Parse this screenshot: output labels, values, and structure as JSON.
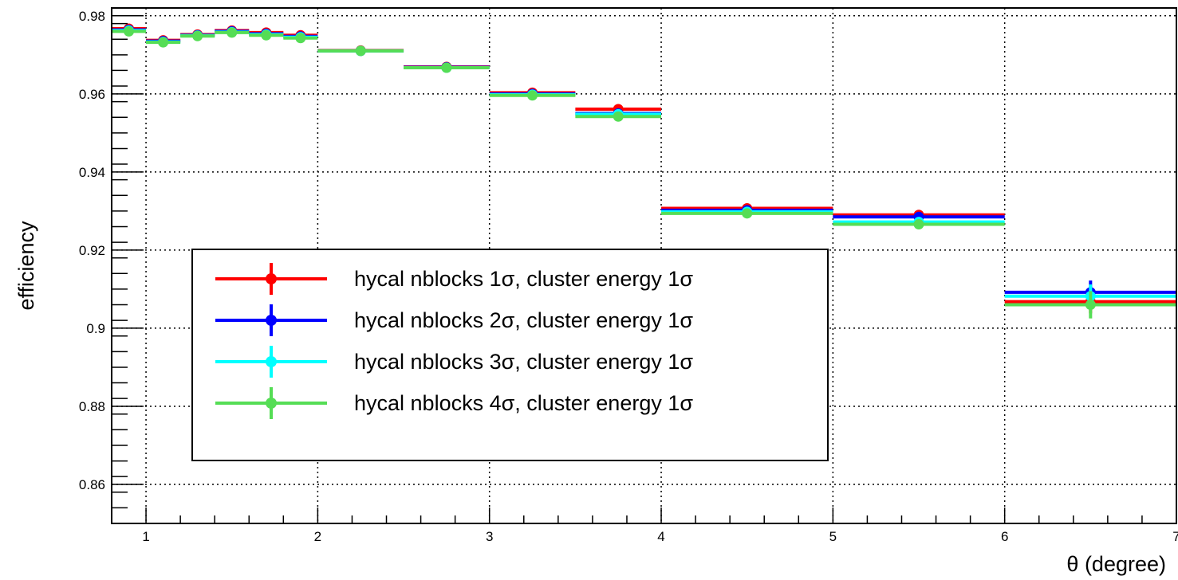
{
  "chart_data": {
    "type": "scatter",
    "title": "",
    "xlabel": "θ (degree)",
    "ylabel": "efficiency",
    "xlim": [
      0.8,
      7.0
    ],
    "ylim": [
      0.85,
      0.982
    ],
    "grid": true,
    "legend_position": "bottom-left",
    "x_ticks": [
      "1",
      "2",
      "3",
      "4",
      "5",
      "6",
      "7"
    ],
    "y_ticks": [
      "0.86",
      "0.88",
      "0.9",
      "0.92",
      "0.94",
      "0.96",
      "0.98"
    ],
    "bins": [
      {
        "low": 0.8,
        "high": 1.0,
        "center": 0.9
      },
      {
        "low": 1.0,
        "high": 1.2,
        "center": 1.1
      },
      {
        "low": 1.2,
        "high": 1.4,
        "center": 1.3
      },
      {
        "low": 1.4,
        "high": 1.6,
        "center": 1.5
      },
      {
        "low": 1.6,
        "high": 1.8,
        "center": 1.7
      },
      {
        "low": 1.8,
        "high": 2.0,
        "center": 1.9
      },
      {
        "low": 2.0,
        "high": 2.5,
        "center": 2.25
      },
      {
        "low": 2.5,
        "high": 3.0,
        "center": 2.75
      },
      {
        "low": 3.0,
        "high": 3.5,
        "center": 3.25
      },
      {
        "low": 3.5,
        "high": 4.0,
        "center": 3.75
      },
      {
        "low": 4.0,
        "high": 5.0,
        "center": 4.5
      },
      {
        "low": 5.0,
        "high": 6.0,
        "center": 5.5
      },
      {
        "low": 6.0,
        "high": 7.0,
        "center": 6.5
      }
    ],
    "series": [
      {
        "name": "hycal nblocks 1σ, cluster energy 1σ",
        "color": "#ff0000",
        "values": [
          0.9767,
          0.9737,
          0.9752,
          0.9762,
          0.9757,
          0.975,
          0.9711,
          0.9669,
          0.9603,
          0.9561,
          0.9307,
          0.929,
          0.9068
        ],
        "errors": [
          0.0004,
          0.0004,
          0.0004,
          0.0004,
          0.0004,
          0.0004,
          0.0003,
          0.0003,
          0.0004,
          0.0005,
          0.0006,
          0.001,
          0.003
        ]
      },
      {
        "name": "hycal nblocks 2σ, cluster energy 1σ",
        "color": "#0000ff",
        "values": [
          0.9764,
          0.9735,
          0.975,
          0.976,
          0.9754,
          0.9747,
          0.971,
          0.9668,
          0.96,
          0.955,
          0.9302,
          0.9285,
          0.9092
        ],
        "errors": [
          0.0004,
          0.0004,
          0.0004,
          0.0004,
          0.0004,
          0.0004,
          0.0003,
          0.0003,
          0.0004,
          0.0005,
          0.0006,
          0.001,
          0.003
        ]
      },
      {
        "name": "hycal nblocks 3σ, cluster energy 1σ",
        "color": "#00ffff",
        "values": [
          0.9762,
          0.9733,
          0.9749,
          0.9758,
          0.9752,
          0.9745,
          0.971,
          0.9667,
          0.9598,
          0.9548,
          0.9298,
          0.9272,
          0.9082
        ],
        "errors": [
          0.0004,
          0.0004,
          0.0004,
          0.0004,
          0.0004,
          0.0004,
          0.0003,
          0.0003,
          0.0004,
          0.0005,
          0.0006,
          0.001,
          0.003
        ]
      },
      {
        "name": "hycal nblocks 4σ, cluster energy 1σ",
        "color": "#55dd55",
        "values": [
          0.976,
          0.9732,
          0.9748,
          0.9757,
          0.975,
          0.9743,
          0.971,
          0.9667,
          0.9596,
          0.9542,
          0.9294,
          0.9266,
          0.906
        ],
        "errors": [
          0.0004,
          0.0004,
          0.0004,
          0.0004,
          0.0004,
          0.0004,
          0.0003,
          0.0003,
          0.0004,
          0.0005,
          0.0006,
          0.0012,
          0.0035
        ]
      }
    ]
  }
}
